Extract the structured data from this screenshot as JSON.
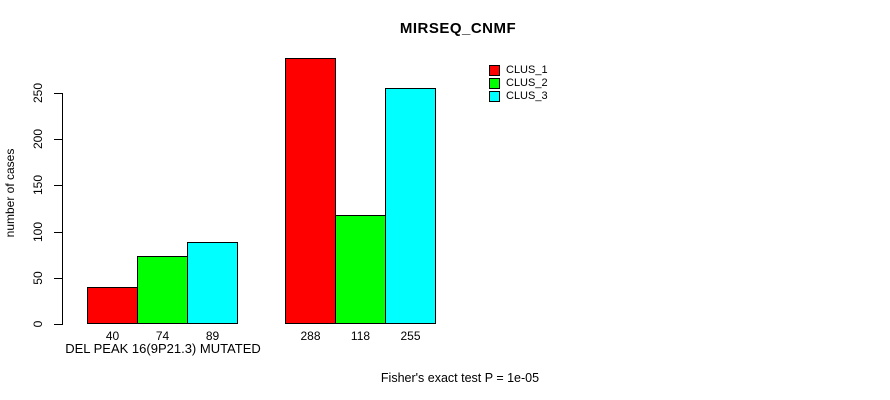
{
  "chart_data": {
    "type": "bar",
    "title": "MIRSEQ_CNMF",
    "xlabel": "",
    "ylabel": "number of cases",
    "ylim": [
      0,
      250
    ],
    "yticks": [
      0,
      50,
      100,
      150,
      200,
      250
    ],
    "grid": false,
    "legend_position": "top-right",
    "categories": [
      "DEL PEAK 16(9P21.3) MUTATED",
      ""
    ],
    "series": [
      {
        "name": "CLUS_1",
        "color": "#ff0000",
        "values": [
          40,
          288
        ]
      },
      {
        "name": "CLUS_2",
        "color": "#00ff00",
        "values": [
          74,
          118
        ]
      },
      {
        "name": "CLUS_3",
        "color": "#00ffff",
        "values": [
          89,
          255
        ]
      }
    ],
    "bar_value_labels": [
      [
        40,
        74,
        89
      ],
      [
        288,
        118,
        255
      ]
    ],
    "annotation": "Fisher's exact test P = 1e-05"
  },
  "colors": {
    "clus_1": "#ff0000",
    "clus_2": "#00ff00",
    "clus_3": "#00ffff",
    "axis": "#000000",
    "background": "#ffffff"
  }
}
